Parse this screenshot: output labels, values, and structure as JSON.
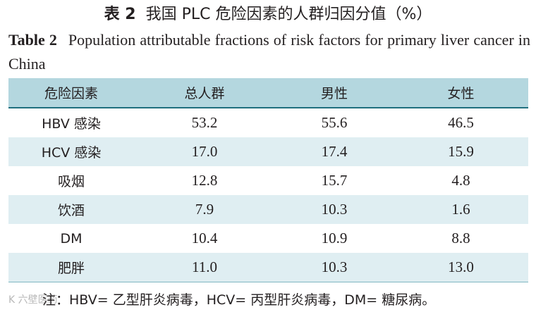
{
  "title_cn": {
    "label": "表 2",
    "text": "我国 PLC 危险因素的人群归因分值（%）"
  },
  "title_en": {
    "label": "Table 2",
    "text": "Population attributable fractions of risk factors for primary liver cancer in China"
  },
  "table": {
    "headers": [
      "危险因素",
      "总人群",
      "男性",
      "女性"
    ],
    "rows": [
      [
        "HBV 感染",
        "53.2",
        "55.6",
        "46.5"
      ],
      [
        "HCV 感染",
        "17.0",
        "17.4",
        "15.9"
      ],
      [
        "吸烟",
        "12.8",
        "15.7",
        "4.8"
      ],
      [
        "饮酒",
        "7.9",
        "10.3",
        "1.6"
      ],
      [
        "DM",
        "10.4",
        "10.9",
        "8.8"
      ],
      [
        "肥胖",
        "11.0",
        "10.3",
        "13.0"
      ]
    ]
  },
  "note": "注：HBV= 乙型肝炎病毒，HCV= 丙型肝炎病毒，DM= 糖尿病。",
  "watermark": "K 六壁医药"
}
